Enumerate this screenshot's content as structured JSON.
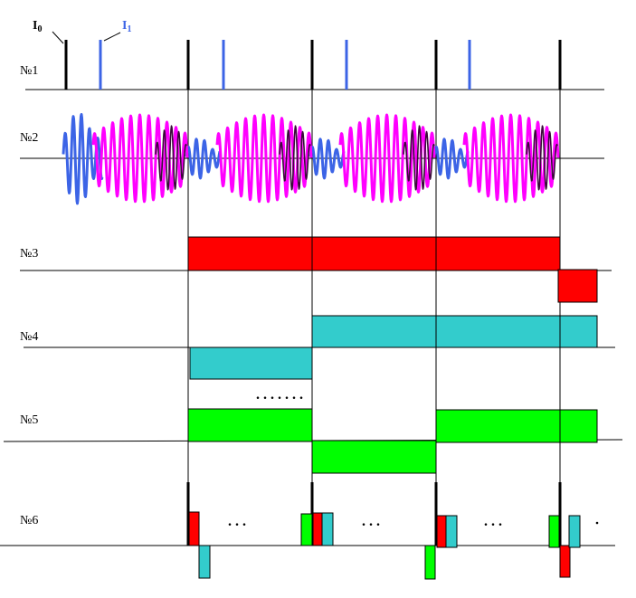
{
  "labels": {
    "i0": "I",
    "i0_sub": "0",
    "i1": "I",
    "i1_sub": "1",
    "rows": [
      "№1",
      "№2",
      "№3",
      "№4",
      "№5",
      "№6"
    ]
  },
  "ellipses": {
    "row4": ". . . . . . .",
    "row6": ". . ."
  },
  "colors": {
    "black": "#000000",
    "blue": "#3c64e6",
    "magenta": "#ff00ff",
    "dark": "#3a0a3a",
    "red": "#ff0000",
    "cyan": "#33cccc",
    "green": "#00ff00"
  }
}
